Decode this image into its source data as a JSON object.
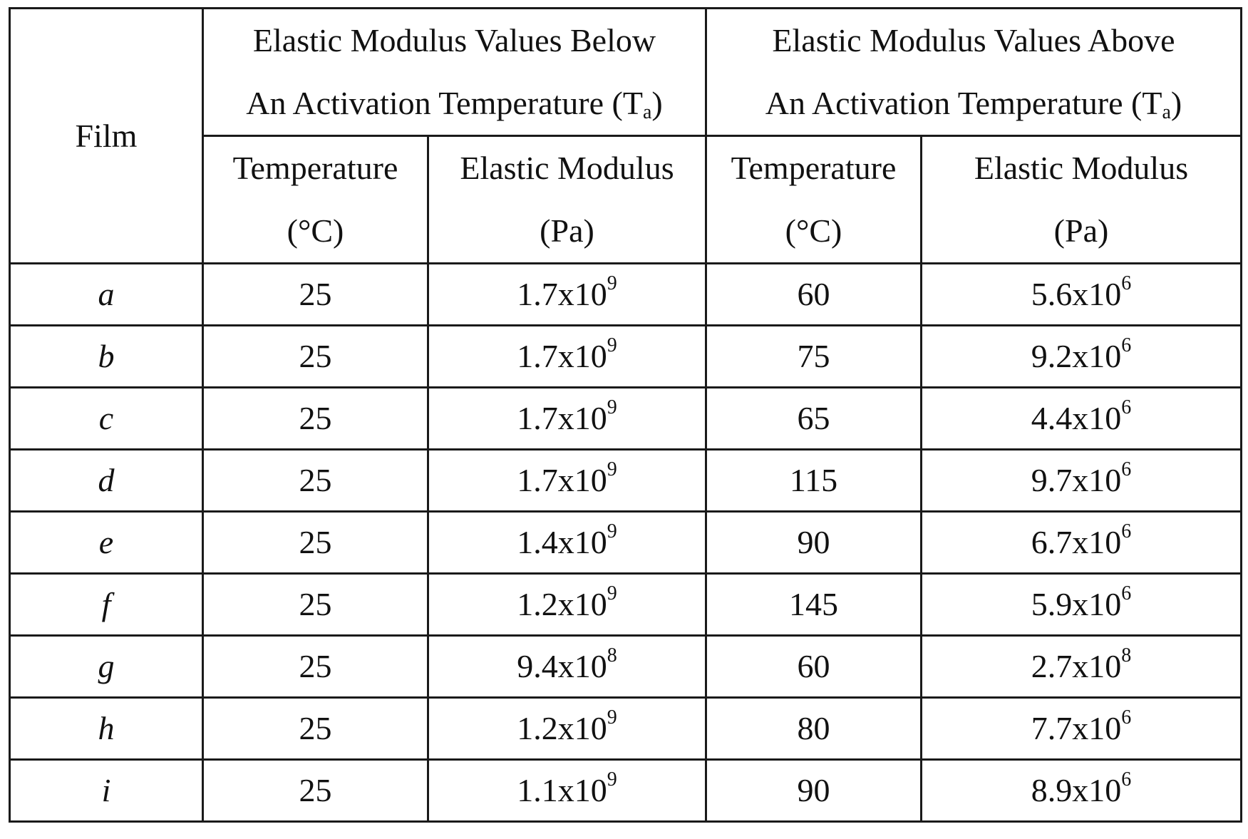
{
  "table": {
    "header": {
      "film": "Film",
      "below_group": {
        "line1": "Elastic Modulus Values Below",
        "line2_prefix": "An Activation Temperature (T",
        "line2_sub": "a",
        "line2_suffix": ")"
      },
      "above_group": {
        "line1": "Elastic Modulus Values Above",
        "line2_prefix": "An Activation Temperature (T",
        "line2_sub": "a",
        "line2_suffix": ")"
      },
      "sub_columns": [
        {
          "line1": "Temperature",
          "line2": "(°C)"
        },
        {
          "line1": "Elastic Modulus",
          "line2": "(Pa)"
        },
        {
          "line1": "Temperature",
          "line2": "(°C)"
        },
        {
          "line1": "Elastic Modulus",
          "line2": "(Pa)"
        }
      ]
    },
    "rows": [
      {
        "film": "a",
        "t_below": "25",
        "e_below_base": "1.7x10",
        "e_below_exp": "9",
        "t_above": "60",
        "e_above_base": "5.6x10",
        "e_above_exp": "6"
      },
      {
        "film": "b",
        "t_below": "25",
        "e_below_base": "1.7x10",
        "e_below_exp": "9",
        "t_above": "75",
        "e_above_base": "9.2x10",
        "e_above_exp": "6"
      },
      {
        "film": "c",
        "t_below": "25",
        "e_below_base": "1.7x10",
        "e_below_exp": "9",
        "t_above": "65",
        "e_above_base": "4.4x10",
        "e_above_exp": "6"
      },
      {
        "film": "d",
        "t_below": "25",
        "e_below_base": "1.7x10",
        "e_below_exp": "9",
        "t_above": "115",
        "e_above_base": "9.7x10",
        "e_above_exp": "6"
      },
      {
        "film": "e",
        "t_below": "25",
        "e_below_base": "1.4x10",
        "e_below_exp": "9",
        "t_above": "90",
        "e_above_base": "6.7x10",
        "e_above_exp": "6"
      },
      {
        "film": "f",
        "t_below": "25",
        "e_below_base": "1.2x10",
        "e_below_exp": "9",
        "t_above": "145",
        "e_above_base": "5.9x10",
        "e_above_exp": "6"
      },
      {
        "film": "g",
        "t_below": "25",
        "e_below_base": "9.4x10",
        "e_below_exp": "8",
        "t_above": "60",
        "e_above_base": "2.7x10",
        "e_above_exp": "8"
      },
      {
        "film": "h",
        "t_below": "25",
        "e_below_base": "1.2x10",
        "e_below_exp": "9",
        "t_above": "80",
        "e_above_base": "7.7x10",
        "e_above_exp": "6"
      },
      {
        "film": "i",
        "t_below": "25",
        "e_below_base": "1.1x10",
        "e_below_exp": "9",
        "t_above": "90",
        "e_above_base": "8.9x10",
        "e_above_exp": "6"
      }
    ]
  }
}
